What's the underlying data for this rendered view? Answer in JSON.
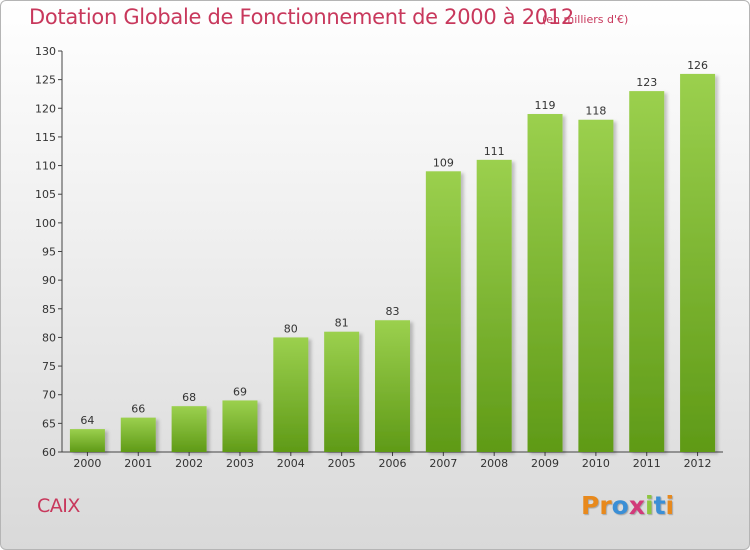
{
  "header": {
    "title": "Dotation Globale de Fonctionnement de 2000 à 2012",
    "unit": "(en milliers d'€)"
  },
  "footer": {
    "commune": "CAIX",
    "brand_letters": [
      "P",
      "r",
      "o",
      "x",
      "i",
      "t",
      "i"
    ],
    "brand_colors": [
      "#e8891c",
      "#e8891c",
      "#3b8fd6",
      "#d23a7a",
      "#8dc63f",
      "#3b8fd6",
      "#e8891c"
    ]
  },
  "colors": {
    "title": "#c8385c",
    "bar_top": "#9bd04e",
    "bar_bottom": "#5f9a17"
  },
  "chart_data": {
    "type": "bar",
    "categories": [
      "2000",
      "2001",
      "2002",
      "2003",
      "2004",
      "2005",
      "2006",
      "2007",
      "2008",
      "2009",
      "2010",
      "2011",
      "2012"
    ],
    "values": [
      64,
      66,
      68,
      69,
      80,
      81,
      83,
      109,
      111,
      119,
      118,
      123,
      126
    ],
    "ylim": [
      60,
      130
    ],
    "yticks": [
      60,
      65,
      70,
      75,
      80,
      85,
      90,
      95,
      100,
      105,
      110,
      115,
      120,
      125,
      130
    ],
    "grid": false,
    "data_labels": true
  }
}
